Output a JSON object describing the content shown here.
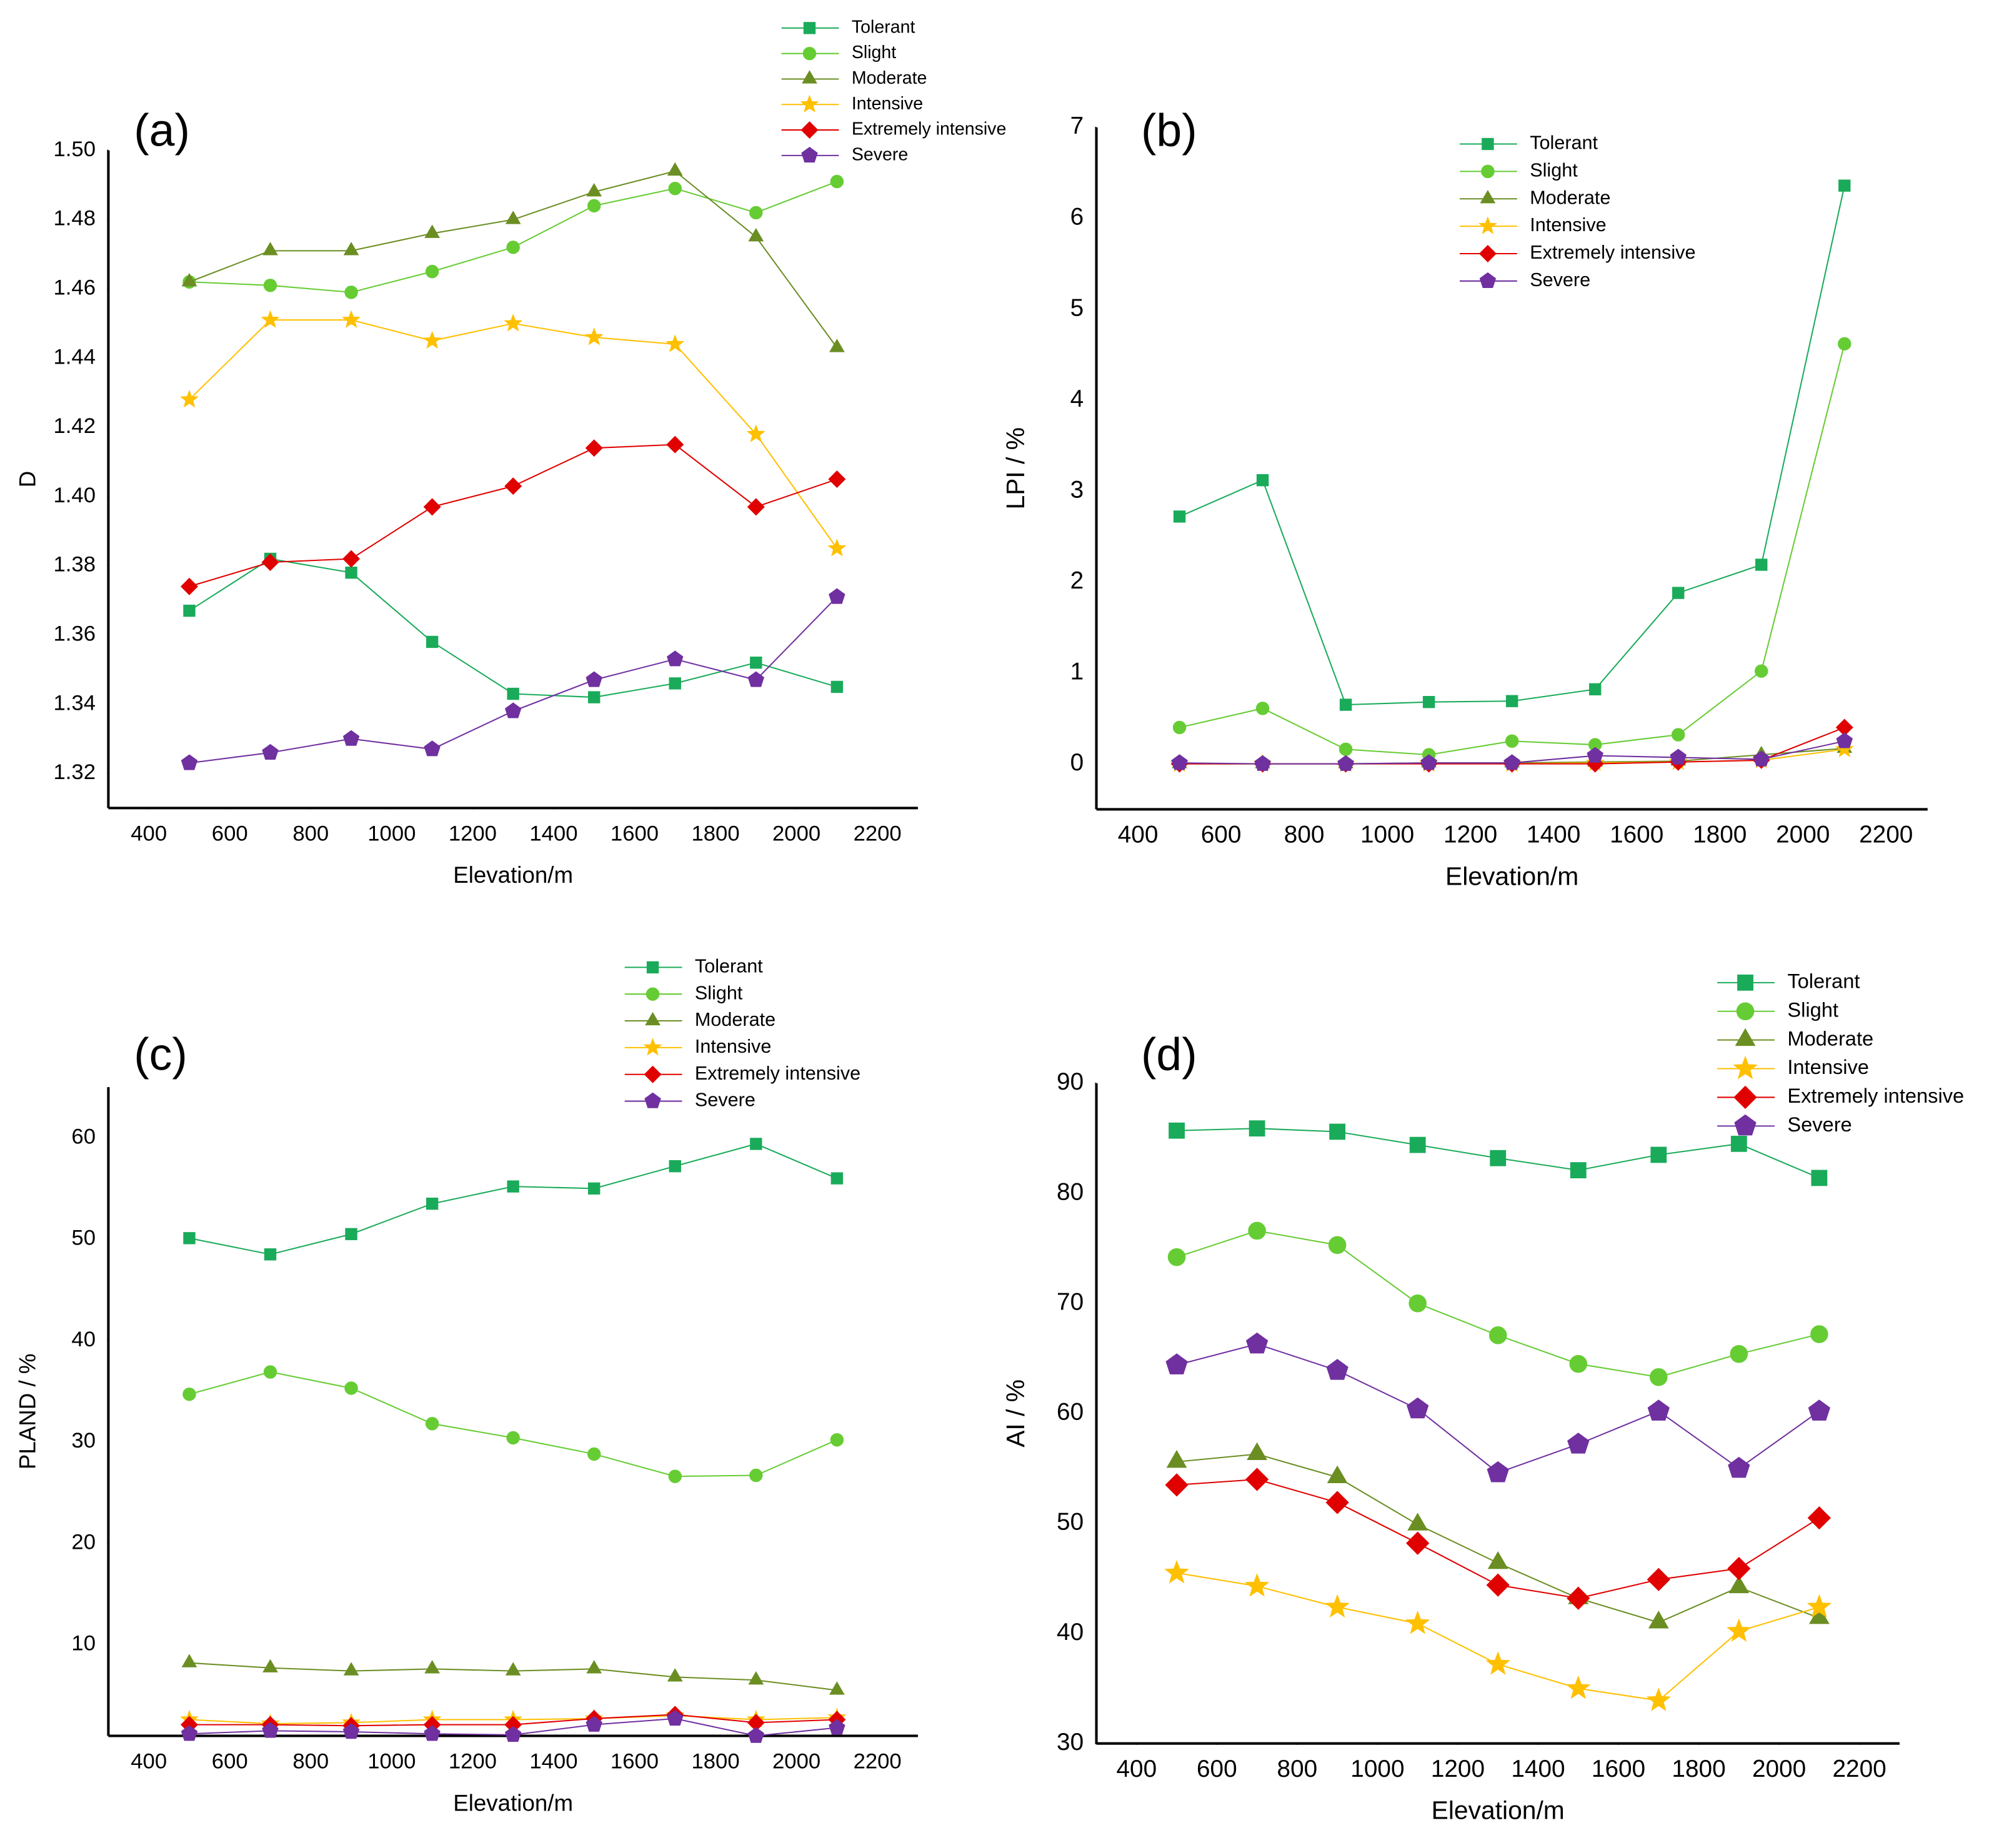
{
  "chart_data": [
    {
      "type": "line",
      "label": "(a)",
      "xlabel": "Elevation/m",
      "ylabel": "D",
      "x": [
        500,
        700,
        900,
        1100,
        1300,
        1500,
        1700,
        1900,
        2100
      ],
      "xlim": [
        300,
        2300
      ],
      "xticks": [
        400,
        600,
        800,
        1000,
        1200,
        1400,
        1600,
        1800,
        2000,
        2200
      ],
      "ylim": [
        1.31,
        1.5
      ],
      "yticks": [
        1.32,
        1.34,
        1.36,
        1.38,
        {
          "value": 1.4,
          "label": "1.40"
        },
        1.42,
        1.44,
        1.46,
        1.48,
        {
          "value": 1.5,
          "label": "1.50"
        }
      ],
      "series": [
        {
          "name": "Tolerant",
          "color": "#1aab5a",
          "marker": "square",
          "values": [
            1.367,
            1.382,
            1.378,
            1.358,
            1.343,
            1.342,
            1.346,
            1.352,
            1.345
          ]
        },
        {
          "name": "Slight",
          "color": "#66cc33",
          "marker": "circle",
          "values": [
            1.462,
            1.461,
            1.459,
            1.465,
            1.472,
            1.484,
            1.489,
            1.482,
            1.491
          ]
        },
        {
          "name": "Moderate",
          "color": "#6b8e23",
          "marker": "triangle",
          "values": [
            1.462,
            1.471,
            1.471,
            1.476,
            1.48,
            1.488,
            1.494,
            1.475,
            1.443
          ]
        },
        {
          "name": "Intensive",
          "color": "#ffc000",
          "marker": "star",
          "values": [
            1.428,
            1.451,
            1.451,
            1.445,
            1.45,
            1.446,
            1.444,
            1.418,
            1.385
          ]
        },
        {
          "name": "Extremely intensive",
          "color": "#e00000",
          "marker": "diamond",
          "values": [
            1.374,
            1.381,
            1.382,
            1.397,
            1.403,
            1.414,
            1.415,
            1.397,
            1.405
          ]
        },
        {
          "name": "Severe",
          "color": "#7030a0",
          "marker": "pentagon",
          "values": [
            1.323,
            1.326,
            1.33,
            1.327,
            1.338,
            1.347,
            1.353,
            1.347,
            1.371
          ]
        }
      ]
    },
    {
      "type": "line",
      "label": "(b)",
      "xlabel": "Elevation/m",
      "ylabel": "LPI / %",
      "x": [
        500,
        700,
        900,
        1100,
        1300,
        1500,
        1700,
        1900,
        2100
      ],
      "xlim": [
        300,
        2300
      ],
      "xticks": [
        400,
        600,
        800,
        1000,
        1200,
        1400,
        1600,
        1800,
        2000,
        2200
      ],
      "ylim": [
        -0.5,
        7
      ],
      "yticks": [
        0,
        1,
        2,
        3,
        4,
        5,
        6,
        7
      ],
      "series": [
        {
          "name": "Tolerant",
          "color": "#1aab5a",
          "marker": "square",
          "values": [
            2.72,
            3.12,
            0.65,
            0.68,
            0.69,
            0.82,
            1.88,
            2.19,
            6.36
          ]
        },
        {
          "name": "Slight",
          "color": "#66cc33",
          "marker": "circle",
          "values": [
            0.4,
            0.61,
            0.16,
            0.1,
            0.25,
            0.21,
            0.32,
            1.02,
            4.62
          ]
        },
        {
          "name": "Moderate",
          "color": "#6b8e23",
          "marker": "triangle",
          "values": [
            0,
            0,
            0,
            0.01,
            0.01,
            0.02,
            0.03,
            0.1,
            0.17
          ]
        },
        {
          "name": "Intensive",
          "color": "#ffc000",
          "marker": "star",
          "values": [
            0,
            0,
            0,
            0,
            0,
            0.01,
            0.02,
            0.04,
            0.16
          ]
        },
        {
          "name": "Extremely intensive",
          "color": "#e00000",
          "marker": "diamond",
          "values": [
            0,
            0,
            0,
            0,
            0,
            0,
            0.02,
            0.04,
            0.4
          ]
        },
        {
          "name": "Severe",
          "color": "#7030a0",
          "marker": "pentagon",
          "values": [
            0.01,
            0,
            0,
            0.01,
            0.01,
            0.09,
            0.07,
            0.05,
            0.25
          ]
        }
      ]
    },
    {
      "type": "line",
      "label": "(c)",
      "xlabel": "Elevation/m",
      "ylabel": "PLAND / %",
      "x": [
        500,
        700,
        900,
        1100,
        1300,
        1500,
        1700,
        1900,
        2100
      ],
      "xlim": [
        300,
        2300
      ],
      "xticks": [
        400,
        600,
        800,
        1000,
        1200,
        1400,
        1600,
        1800,
        2000,
        2200
      ],
      "ylim": [
        1,
        65
      ],
      "yticks": [
        10,
        20,
        30,
        40,
        50,
        60
      ],
      "series": [
        {
          "name": "Tolerant",
          "color": "#1aab5a",
          "marker": "square",
          "values": [
            50.1,
            48.5,
            50.5,
            53.5,
            55.2,
            55.0,
            57.2,
            59.4,
            56.0
          ]
        },
        {
          "name": "Slight",
          "color": "#66cc33",
          "marker": "circle",
          "values": [
            34.7,
            36.9,
            35.3,
            31.8,
            30.4,
            28.8,
            26.6,
            26.7,
            30.2
          ]
        },
        {
          "name": "Moderate",
          "color": "#6b8e23",
          "marker": "triangle",
          "values": [
            8.2,
            7.7,
            7.4,
            7.6,
            7.4,
            7.6,
            6.8,
            6.5,
            5.5
          ]
        },
        {
          "name": "Intensive",
          "color": "#ffc000",
          "marker": "star",
          "values": [
            2.6,
            2.2,
            2.3,
            2.6,
            2.6,
            2.7,
            3.0,
            2.6,
            2.8
          ]
        },
        {
          "name": "Extremely intensive",
          "color": "#e00000",
          "marker": "diamond",
          "values": [
            2.1,
            2.1,
            2.0,
            2.1,
            2.1,
            2.7,
            3.1,
            2.3,
            2.6
          ]
        },
        {
          "name": "Severe",
          "color": "#7030a0",
          "marker": "pentagon",
          "values": [
            1.2,
            1.5,
            1.4,
            1.2,
            1.1,
            2.1,
            2.7,
            1.0,
            1.8
          ]
        }
      ]
    },
    {
      "type": "line",
      "label": "(d)",
      "xlabel": "Elevation/m",
      "ylabel": "AI / %",
      "x": [
        500,
        700,
        900,
        1100,
        1300,
        1500,
        1700,
        1900,
        2100
      ],
      "xlim": [
        300,
        2300
      ],
      "xticks": [
        400,
        600,
        800,
        1000,
        1200,
        1400,
        1600,
        1800,
        2000,
        2200
      ],
      "ylim": [
        30,
        90
      ],
      "yticks": [
        30,
        40,
        50,
        60,
        70,
        80,
        90
      ],
      "series": [
        {
          "name": "Tolerant",
          "color": "#1aab5a",
          "marker": "square",
          "values": [
            85.7,
            85.9,
            85.6,
            84.4,
            83.2,
            82.1,
            83.5,
            84.5,
            81.4
          ]
        },
        {
          "name": "Slight",
          "color": "#66cc33",
          "marker": "circle",
          "values": [
            74.2,
            76.6,
            75.3,
            70.0,
            67.1,
            64.5,
            63.3,
            65.4,
            67.2
          ]
        },
        {
          "name": "Moderate",
          "color": "#6b8e23",
          "marker": "triangle",
          "values": [
            55.6,
            56.3,
            54.2,
            49.9,
            46.4,
            43.2,
            41.0,
            44.2,
            41.4
          ]
        },
        {
          "name": "Intensive",
          "color": "#ffc000",
          "marker": "star",
          "values": [
            45.5,
            44.3,
            42.4,
            40.9,
            37.2,
            35.0,
            33.9,
            40.2,
            42.4
          ]
        },
        {
          "name": "Extremely intensive",
          "color": "#e00000",
          "marker": "diamond",
          "values": [
            53.5,
            54.0,
            51.9,
            48.2,
            44.4,
            43.2,
            44.9,
            45.9,
            50.5
          ]
        },
        {
          "name": "Severe",
          "color": "#7030a0",
          "marker": "pentagon",
          "values": [
            64.4,
            66.3,
            63.9,
            60.4,
            54.6,
            57.2,
            60.2,
            55.0,
            60.2
          ]
        }
      ]
    }
  ]
}
